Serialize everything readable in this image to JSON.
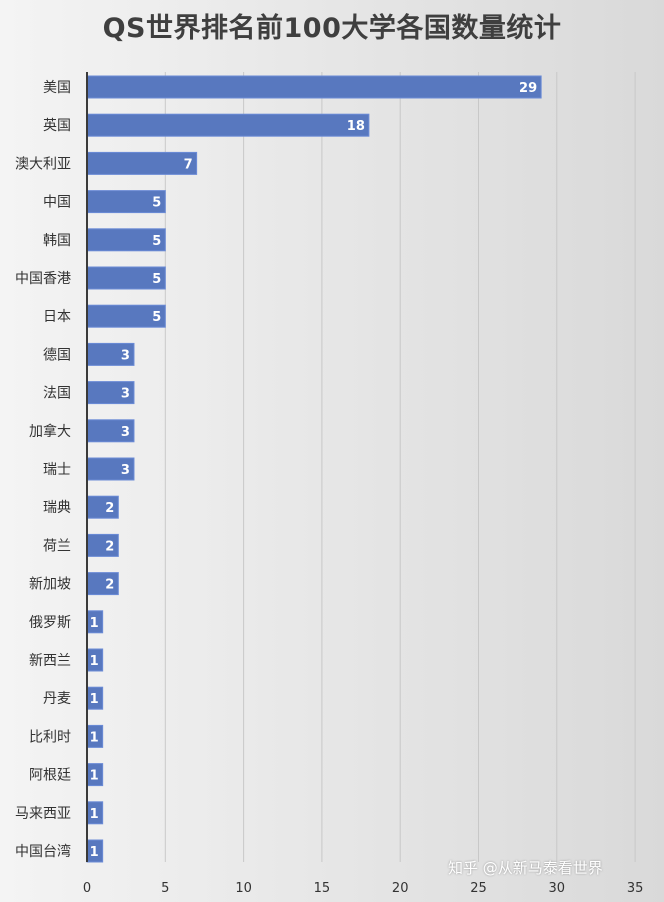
{
  "chart_data": {
    "type": "bar",
    "orientation": "horizontal",
    "title": "QS世界排名前100大学各国数量统计",
    "categories": [
      "美国",
      "英国",
      "澳大利亚",
      "中国",
      "韩国",
      "中国香港",
      "日本",
      "德国",
      "法国",
      "加拿大",
      "瑞士",
      "瑞典",
      "荷兰",
      "新加坡",
      "俄罗斯",
      "新西兰",
      "丹麦",
      "比利时",
      "阿根廷",
      "马来西亚",
      "中国台湾"
    ],
    "values": [
      29,
      18,
      7,
      5,
      5,
      5,
      5,
      3,
      3,
      3,
      3,
      2,
      2,
      2,
      1,
      1,
      1,
      1,
      1,
      1,
      1
    ],
    "xlim": [
      0,
      35
    ],
    "xticks": [
      0,
      5,
      10,
      15,
      20,
      25,
      30,
      35
    ],
    "grid": true,
    "data_labels": true,
    "bar_color": "#5878bf",
    "label_color": "#ffffff"
  },
  "watermark": "知乎 @从新马泰看世界"
}
